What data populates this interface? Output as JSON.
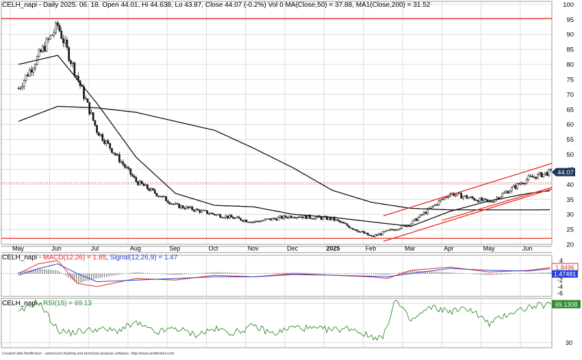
{
  "chart_data": {
    "type": "line",
    "symbol": "CELH_napi",
    "title": "CELH_napi - Daily 2025. 06. 18. Open 44.01, Hi 44.638, Lo 43.87, Close 44.07 (-0.2%) Vol 0 MA(Close,50) = 37.88, MA1(Close,200) = 31.52",
    "footer": "Created with AmiBroker - advanced charting and technical analysis software. http://www.amibroker.com",
    "last_price_label": "44.07",
    "x_ticks": [
      {
        "label": "May",
        "bold": false
      },
      {
        "label": "Jun",
        "bold": false
      },
      {
        "label": "Jul",
        "bold": false
      },
      {
        "label": "Aug",
        "bold": false
      },
      {
        "label": "Sep",
        "bold": false
      },
      {
        "label": "Oct",
        "bold": false
      },
      {
        "label": "Nov",
        "bold": false
      },
      {
        "label": "Dec",
        "bold": false
      },
      {
        "label": "2025",
        "bold": true
      },
      {
        "label": "Feb",
        "bold": false
      },
      {
        "label": "Mar",
        "bold": false
      },
      {
        "label": "Apr",
        "bold": false
      },
      {
        "label": "May",
        "bold": false
      },
      {
        "label": "Jun",
        "bold": false
      }
    ],
    "price_panel": {
      "ylim": [
        20,
        101
      ],
      "yticks": [
        "100",
        "95",
        "90",
        "85",
        "80",
        "75",
        "70",
        "65",
        "60",
        "55",
        "50",
        "45",
        "40",
        "35",
        "30",
        "25",
        "20"
      ],
      "month_index": [
        0,
        1,
        2,
        3,
        4,
        5,
        6,
        7,
        8,
        9,
        10,
        11,
        12,
        13,
        13.55
      ],
      "close": [
        72,
        93,
        58,
        41,
        33,
        30,
        27.5,
        29.5,
        28.5,
        22.5,
        27,
        37,
        34,
        42,
        44.07
      ],
      "ma50": [
        80,
        83,
        67,
        49,
        37,
        33,
        32.5,
        30,
        29,
        27.5,
        26,
        31,
        34.5,
        37,
        37.88
      ],
      "ma200": [
        61,
        66,
        65.5,
        64,
        61,
        58,
        52,
        45.5,
        38,
        34,
        32,
        31.5,
        31.5,
        31.5,
        31.52
      ],
      "horizontal_lines": [
        {
          "value": 95.3,
          "color": "#e8281f"
        },
        {
          "value": 22,
          "color": "#e8281f"
        }
      ],
      "dotted_line": {
        "value": 40.5,
        "color": "#e8281f"
      },
      "channel": {
        "color": "#e8281f",
        "upper": {
          "x": [
            9.3,
            13.6
          ],
          "y": [
            29.5,
            47
          ]
        },
        "lower": {
          "x": [
            9.3,
            13.6
          ],
          "y": [
            21,
            38.5
          ]
        },
        "support": {
          "x": [
            10.8,
            13.6
          ],
          "y": [
            28,
            39
          ]
        }
      }
    },
    "macd_panel": {
      "label": "CELH_napi - MACD(12,26) = 1.85, Signal(12,26,9) = 1.47",
      "macd_label": "MACD(12,26) = 1.85",
      "signal_label": "Signal(12,26,9) = 1.47",
      "ylim": [
        -7,
        5
      ],
      "yticks": [
        "4",
        "2",
        "0",
        "-2",
        "-4",
        "-6"
      ],
      "macd_value_label": "1.8496",
      "signal_value_label": "1.47481",
      "macd_color": "#e8281f",
      "signal_color": "#2a3fd8",
      "month_index": [
        0,
        0.5,
        1,
        1.5,
        2,
        3,
        4,
        5,
        6,
        7,
        8,
        9,
        9.4,
        10,
        11,
        12,
        13,
        13.55
      ],
      "macd": [
        0,
        3,
        4,
        -3,
        -4,
        -1.5,
        -2,
        -0.5,
        -1,
        0,
        -0.5,
        -1,
        -1.5,
        1,
        2,
        0.5,
        1,
        1.85
      ],
      "signal": [
        -0.5,
        1.5,
        3,
        0,
        -2.5,
        -2,
        -1.5,
        -1,
        -1,
        -0.3,
        -0.5,
        -0.8,
        -1,
        0,
        1.6,
        1,
        0.8,
        1.47
      ]
    },
    "rsi_panel": {
      "label": "CELH_napi - RSI(15) = 69.13",
      "rsi_label": "RSI(15) = 69.13",
      "ylim": [
        25,
        75
      ],
      "yticks": [
        "70",
        "30"
      ],
      "value_label": "69.1308",
      "color": "#2e8b2e",
      "month_index": [
        0,
        0.5,
        1,
        1.3,
        2,
        2.5,
        3,
        3.5,
        4,
        4.5,
        5,
        5.5,
        6,
        6.5,
        7,
        7.5,
        8,
        8.5,
        8.9,
        9.3,
        9.6,
        10,
        10.5,
        11,
        11.5,
        12,
        12.5,
        13,
        13.55
      ],
      "rsi": [
        60,
        72,
        43,
        40,
        44,
        42,
        50,
        40,
        45,
        38,
        44,
        40,
        47,
        39,
        46,
        44,
        43,
        45,
        37,
        35,
        74,
        52,
        66,
        62,
        65,
        49,
        60,
        66,
        69.13
      ]
    }
  },
  "colors": {
    "background": "#ffffff",
    "grid": "#dcdcdc",
    "frame": "#999999",
    "bull_candle": "#ffffff",
    "bear_candle": "#1a1a1a",
    "ma": "#111111",
    "price_label_bg": "#1d3557"
  }
}
